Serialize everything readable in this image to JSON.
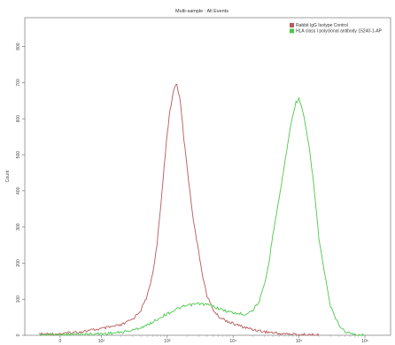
{
  "chart_data": {
    "type": "line",
    "title": "Multi-sample : All Events",
    "xlabel": "",
    "ylabel": "Count",
    "xscale": "log",
    "xlim": [
      -60,
      1000000
    ],
    "ylim": [
      0,
      880
    ],
    "x_ticks": [
      {
        "value": 0,
        "label": "0"
      },
      {
        "value": 100,
        "label": "10²"
      },
      {
        "value": 1000,
        "label": "10³"
      },
      {
        "value": 10000,
        "label": "10⁴"
      },
      {
        "value": 100000,
        "label": "10⁵"
      },
      {
        "value": 1000000,
        "label": "10⁶"
      }
    ],
    "y_ticks": [
      0,
      100,
      200,
      300,
      400,
      500,
      600,
      700,
      800
    ],
    "grid": false,
    "legend_position": "top-right",
    "series": [
      {
        "name": "Rabbit IgG Isotype Control",
        "color": "#b85a5a",
        "points": [
          [
            -50,
            3
          ],
          [
            0,
            4
          ],
          [
            20,
            6
          ],
          [
            50,
            10
          ],
          [
            100,
            18
          ],
          [
            200,
            28
          ],
          [
            300,
            45
          ],
          [
            400,
            70
          ],
          [
            500,
            110
          ],
          [
            600,
            170
          ],
          [
            700,
            250
          ],
          [
            800,
            360
          ],
          [
            900,
            470
          ],
          [
            1000,
            560
          ],
          [
            1100,
            620
          ],
          [
            1200,
            660
          ],
          [
            1300,
            690
          ],
          [
            1400,
            695
          ],
          [
            1500,
            670
          ],
          [
            1600,
            640
          ],
          [
            1700,
            590
          ],
          [
            1800,
            540
          ],
          [
            2000,
            470
          ],
          [
            2200,
            400
          ],
          [
            2500,
            320
          ],
          [
            3000,
            230
          ],
          [
            3500,
            160
          ],
          [
            4000,
            110
          ],
          [
            5000,
            70
          ],
          [
            6000,
            52
          ],
          [
            8000,
            40
          ],
          [
            10000,
            32
          ],
          [
            15000,
            22
          ],
          [
            20000,
            16
          ],
          [
            30000,
            10
          ],
          [
            50000,
            5
          ],
          [
            100000,
            2
          ],
          [
            200000,
            0
          ]
        ]
      },
      {
        "name": "HLA class I polyclonal antibody 15240-1-AP",
        "color": "#4cc84c",
        "points": [
          [
            -50,
            2
          ],
          [
            0,
            2
          ],
          [
            50,
            3
          ],
          [
            100,
            4
          ],
          [
            200,
            8
          ],
          [
            300,
            14
          ],
          [
            500,
            28
          ],
          [
            700,
            44
          ],
          [
            1000,
            60
          ],
          [
            1500,
            75
          ],
          [
            2000,
            82
          ],
          [
            3000,
            88
          ],
          [
            4000,
            85
          ],
          [
            5000,
            80
          ],
          [
            7000,
            70
          ],
          [
            10000,
            62
          ],
          [
            15000,
            58
          ],
          [
            20000,
            70
          ],
          [
            25000,
            95
          ],
          [
            30000,
            140
          ],
          [
            35000,
            200
          ],
          [
            40000,
            280
          ],
          [
            50000,
            380
          ],
          [
            60000,
            470
          ],
          [
            70000,
            550
          ],
          [
            80000,
            610
          ],
          [
            90000,
            645
          ],
          [
            100000,
            655
          ],
          [
            110000,
            630
          ],
          [
            120000,
            600
          ],
          [
            140000,
            530
          ],
          [
            160000,
            450
          ],
          [
            180000,
            360
          ],
          [
            200000,
            270
          ],
          [
            250000,
            160
          ],
          [
            300000,
            80
          ],
          [
            400000,
            30
          ],
          [
            500000,
            10
          ],
          [
            700000,
            2
          ],
          [
            1000000,
            0
          ]
        ]
      }
    ]
  }
}
